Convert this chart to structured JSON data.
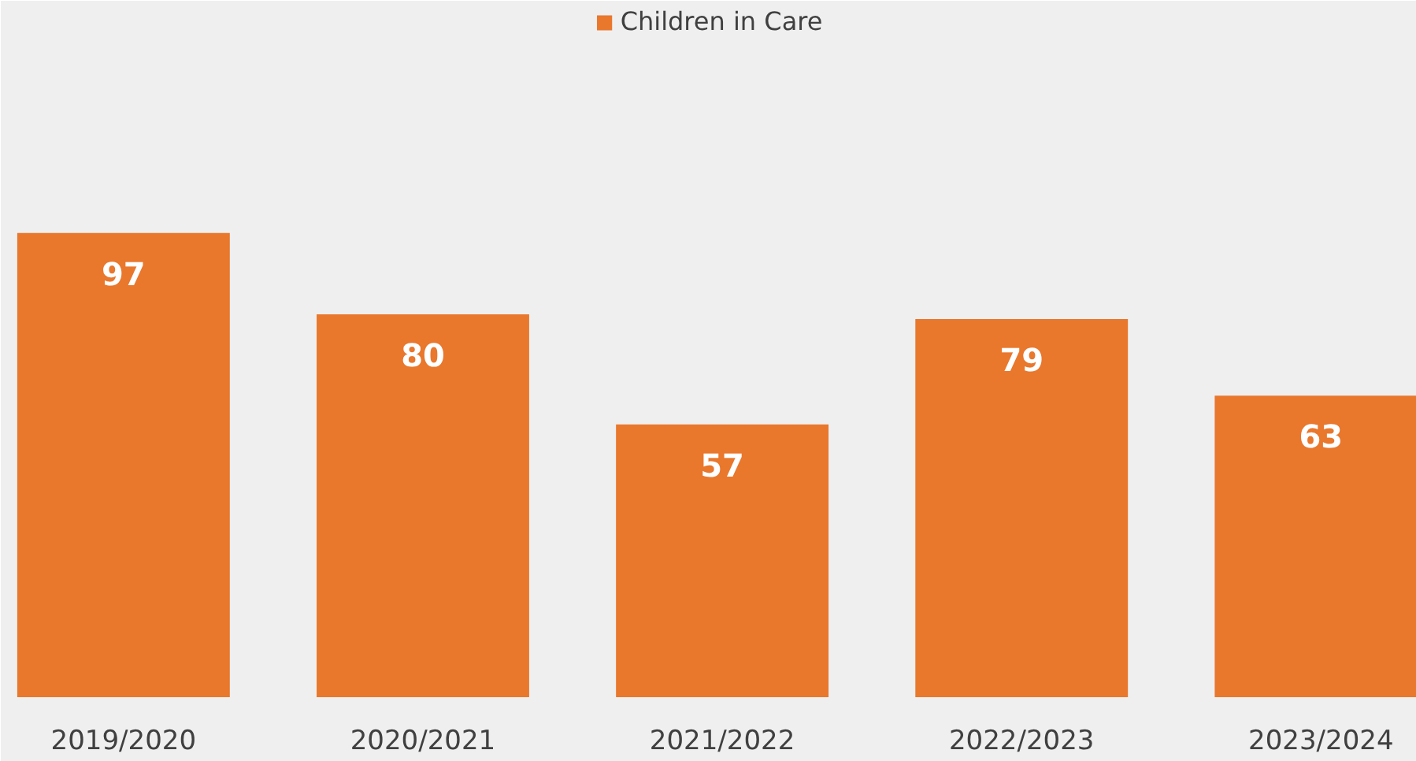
{
  "chart_data": {
    "type": "bar",
    "categories": [
      "2019/2020",
      "2020/2021",
      "2021/2022",
      "2022/2023",
      "2023/2024"
    ],
    "series": [
      {
        "name": "Children in Care",
        "color": "#e9772c",
        "values": [
          97,
          80,
          57,
          79,
          63
        ]
      }
    ],
    "data_labels": true,
    "legend": "top",
    "grid": false
  }
}
